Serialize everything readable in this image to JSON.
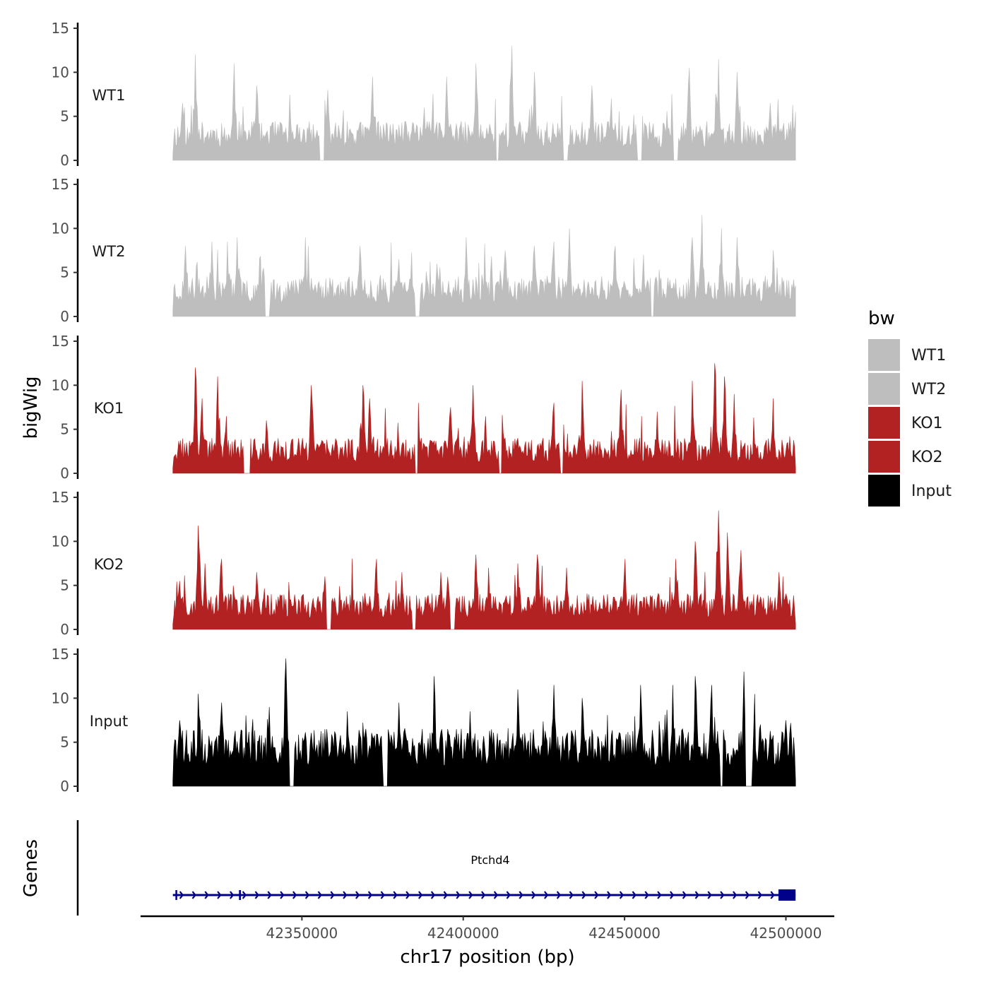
{
  "chart_data": {
    "type": "area",
    "chromosome": "chr17",
    "xlabel": "chr17 position (bp)",
    "ylabel": "bigWig",
    "genes_panel_label": "Genes",
    "xlim": [
      42300000,
      42515000
    ],
    "data_range": [
      42310000,
      42503000
    ],
    "xticks": [
      42350000,
      42400000,
      42450000,
      42500000
    ],
    "xtick_labels": [
      "42350000",
      "42400000",
      "42450000",
      "42500000"
    ],
    "ylim": [
      0,
      15
    ],
    "yticks": [
      0,
      5,
      10,
      15
    ],
    "ytick_labels": [
      "0",
      "5",
      "10",
      "15"
    ],
    "legend": {
      "title": "bw",
      "position": "right",
      "entries": [
        {
          "label": "WT1",
          "color": "#bebebe"
        },
        {
          "label": "WT2",
          "color": "#bebebe"
        },
        {
          "label": "KO1",
          "color": "#b22222"
        },
        {
          "label": "KO2",
          "color": "#b22222"
        },
        {
          "label": "Input",
          "color": "#000000"
        }
      ]
    },
    "series": [
      {
        "name": "WT1",
        "color": "#bebebe",
        "baseline": 2.5,
        "noise": 3.0,
        "seed": 11,
        "peaks": [
          [
            42313000,
            6.5
          ],
          [
            42317000,
            12.0
          ],
          [
            42329000,
            11.0
          ],
          [
            42336000,
            8.5
          ],
          [
            42358000,
            8.0
          ],
          [
            42372000,
            9.5
          ],
          [
            42388000,
            6.0
          ],
          [
            42395000,
            9.5
          ],
          [
            42404000,
            11.0
          ],
          [
            42415000,
            13.0
          ],
          [
            42422000,
            10.0
          ],
          [
            42440000,
            8.5
          ],
          [
            42446000,
            7.0
          ],
          [
            42470000,
            10.5
          ],
          [
            42479000,
            11.5
          ],
          [
            42485000,
            10.0
          ],
          [
            42495000,
            6.5
          ],
          [
            42503000,
            5.5
          ]
        ],
        "dips": [
          [
            42355500,
            42357000
          ],
          [
            42410000,
            42411000
          ],
          [
            42431000,
            42432500
          ],
          [
            42454000,
            42455500
          ],
          [
            42465000,
            42466500
          ]
        ]
      },
      {
        "name": "WT2",
        "color": "#bebebe",
        "baseline": 2.6,
        "noise": 3.0,
        "seed": 23,
        "peaks": [
          [
            42314000,
            8.0
          ],
          [
            42322000,
            8.5
          ],
          [
            42327000,
            8.5
          ],
          [
            42330000,
            9.0
          ],
          [
            42338000,
            5.5
          ],
          [
            42351000,
            9.0
          ],
          [
            42368000,
            8.0
          ],
          [
            42380000,
            6.5
          ],
          [
            42392000,
            6.0
          ],
          [
            42401000,
            9.0
          ],
          [
            42413000,
            7.5
          ],
          [
            42422000,
            8.0
          ],
          [
            42428000,
            8.5
          ],
          [
            42433000,
            10.0
          ],
          [
            42447000,
            8.0
          ],
          [
            42456000,
            7.0
          ],
          [
            42471000,
            9.0
          ],
          [
            42474000,
            11.5
          ],
          [
            42480000,
            10.0
          ],
          [
            42485000,
            9.0
          ],
          [
            42496000,
            7.5
          ],
          [
            42503000,
            3.5
          ]
        ],
        "dips": [
          [
            42338500,
            42340000
          ],
          [
            42385000,
            42386500
          ],
          [
            42458000,
            42459000
          ]
        ]
      },
      {
        "name": "KO1",
        "color": "#b22222",
        "baseline": 2.2,
        "noise": 2.8,
        "seed": 37,
        "peaks": [
          [
            42312000,
            3.0
          ],
          [
            42317000,
            12.0
          ],
          [
            42319000,
            8.5
          ],
          [
            42324000,
            11.0
          ],
          [
            42339000,
            6.0
          ],
          [
            42353000,
            10.0
          ],
          [
            42369000,
            10.0
          ],
          [
            42371000,
            8.5
          ],
          [
            42386000,
            8.0
          ],
          [
            42396000,
            7.5
          ],
          [
            42403000,
            10.0
          ],
          [
            42412000,
            6.0
          ],
          [
            42428000,
            8.0
          ],
          [
            42437000,
            10.5
          ],
          [
            42449000,
            9.5
          ],
          [
            42460000,
            7.0
          ],
          [
            42471000,
            10.5
          ],
          [
            42478000,
            12.5
          ],
          [
            42481000,
            11.0
          ],
          [
            42484000,
            9.0
          ],
          [
            42496000,
            8.5
          ]
        ],
        "dips": [
          [
            42332000,
            42334000
          ],
          [
            42385000,
            42386000
          ],
          [
            42411000,
            42412000
          ],
          [
            42430000,
            42431000
          ]
        ]
      },
      {
        "name": "KO2",
        "color": "#b22222",
        "baseline": 2.3,
        "noise": 2.8,
        "seed": 53,
        "peaks": [
          [
            42312000,
            5.5
          ],
          [
            42318000,
            11.8
          ],
          [
            42320000,
            7.5
          ],
          [
            42325000,
            8.0
          ],
          [
            42336000,
            6.5
          ],
          [
            42357000,
            6.0
          ],
          [
            42373000,
            8.0
          ],
          [
            42381000,
            6.5
          ],
          [
            42393000,
            6.5
          ],
          [
            42404000,
            8.5
          ],
          [
            42408000,
            7.0
          ],
          [
            42417000,
            7.5
          ],
          [
            42423000,
            8.5
          ],
          [
            42432000,
            7.0
          ],
          [
            42450000,
            8.0
          ],
          [
            42466000,
            8.0
          ],
          [
            42472000,
            10.0
          ],
          [
            42479000,
            13.5
          ],
          [
            42482000,
            11.0
          ],
          [
            42486000,
            9.0
          ],
          [
            42498000,
            6.5
          ]
        ],
        "dips": [
          [
            42357500,
            42359000
          ],
          [
            42384000,
            42385500
          ],
          [
            42396000,
            42397500
          ]
        ]
      },
      {
        "name": "Input",
        "color": "#000000",
        "baseline": 3.8,
        "noise": 4.2,
        "seed": 71,
        "peaks": [
          [
            42312000,
            7.5
          ],
          [
            42318000,
            10.5
          ],
          [
            42325000,
            9.5
          ],
          [
            42340000,
            9.0
          ],
          [
            42345000,
            14.5
          ],
          [
            42364000,
            8.5
          ],
          [
            42380000,
            9.5
          ],
          [
            42391000,
            12.5
          ],
          [
            42402000,
            8.5
          ],
          [
            42417000,
            11.0
          ],
          [
            42428000,
            11.5
          ],
          [
            42437000,
            10.0
          ],
          [
            42455000,
            11.5
          ],
          [
            42465000,
            11.5
          ],
          [
            42472000,
            12.5
          ],
          [
            42477000,
            11.5
          ],
          [
            42487000,
            13.0
          ],
          [
            42492000,
            7.0
          ],
          [
            42500000,
            7.5
          ]
        ],
        "dips": [
          [
            42346000,
            42347500
          ],
          [
            42375000,
            42376500
          ],
          [
            42479500,
            42480500
          ],
          [
            42487500,
            42489500
          ]
        ]
      }
    ],
    "gene": {
      "name": "Ptchd4",
      "color": "#00008b",
      "start": 42310000,
      "end": 42503000,
      "strand": "+",
      "exons": [
        [
          42310800,
          42311300
        ],
        [
          42330500,
          42331100
        ],
        [
          42497700,
          42503000
        ]
      ]
    }
  }
}
